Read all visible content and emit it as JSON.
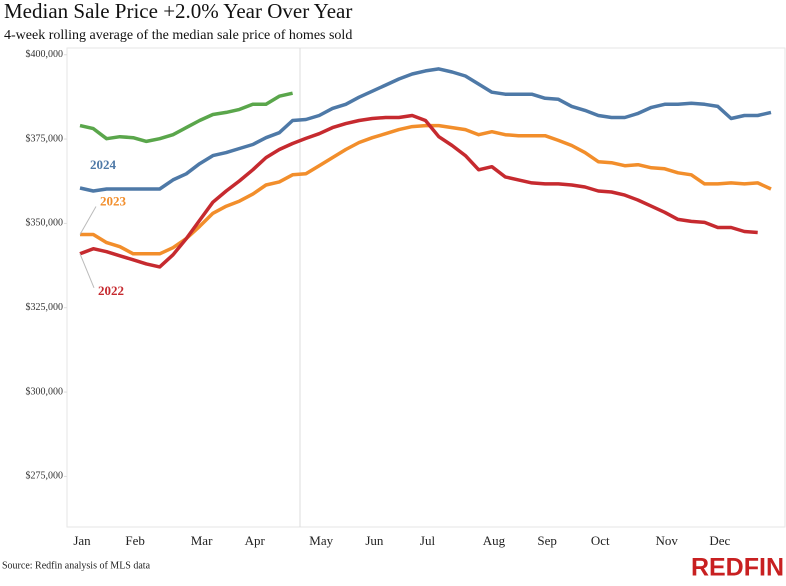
{
  "chart_data": {
    "type": "line",
    "title": "Median Sale Price +2.0% Year Over Year",
    "subtitle": "4-week rolling average of the median sale price of homes sold",
    "source": "Source: Redfin analysis of MLS data",
    "brand": "REDFIN",
    "categories": [
      "Jan",
      null,
      null,
      null,
      "Feb",
      null,
      null,
      null,
      null,
      "Mar",
      null,
      null,
      null,
      "Apr",
      null,
      null,
      null,
      null,
      "May",
      null,
      null,
      null,
      "Jun",
      null,
      null,
      null,
      "Jul",
      null,
      null,
      null,
      null,
      "Aug",
      null,
      null,
      null,
      "Sep",
      null,
      null,
      null,
      "Oct",
      null,
      null,
      null,
      null,
      "Nov",
      null,
      null,
      null,
      "Dec",
      null,
      null,
      null,
      null
    ],
    "series": [
      {
        "color": "#5aa64b",
        "values": [
          379000,
          378100,
          375100,
          375700,
          375400,
          374300,
          375100,
          376300,
          378400,
          380500,
          382300,
          382900,
          383800,
          385300,
          385300,
          387700,
          388600,
          null,
          null,
          null,
          null,
          null,
          null,
          null,
          null,
          null,
          null,
          null,
          null,
          null,
          null,
          null,
          null,
          null,
          null,
          null,
          null,
          null,
          null,
          null,
          null,
          null,
          null,
          null,
          null,
          null,
          null,
          null,
          null,
          null,
          null,
          null,
          null
        ]
      },
      {
        "name": "2024",
        "color": "#4e79a7",
        "values": [
          360500,
          359600,
          360200,
          360200,
          360200,
          360200,
          360200,
          362900,
          364700,
          367700,
          370100,
          371000,
          372200,
          373400,
          375400,
          376900,
          380500,
          380800,
          382000,
          384100,
          385300,
          387400,
          389200,
          391000,
          392800,
          394300,
          395200,
          395800,
          394900,
          393700,
          391300,
          388900,
          388300,
          388300,
          388300,
          387100,
          386800,
          384700,
          383500,
          382000,
          381400,
          381400,
          382600,
          384400,
          385300,
          385300,
          385600,
          385300,
          384700,
          381100,
          382000,
          382000,
          382900
        ]
      },
      {
        "name": "2023",
        "color": "#f28e2b",
        "values": [
          346700,
          346700,
          344300,
          343100,
          341000,
          341000,
          341000,
          342800,
          345500,
          349100,
          353000,
          355100,
          356600,
          358700,
          361400,
          362300,
          364400,
          364700,
          367100,
          369500,
          371900,
          374000,
          375400,
          376600,
          377800,
          378700,
          379000,
          379000,
          378400,
          377800,
          376300,
          377200,
          376300,
          376000,
          376000,
          376000,
          374600,
          373100,
          371000,
          368300,
          368000,
          367100,
          367400,
          366500,
          366200,
          365000,
          364400,
          361700,
          361700,
          362000,
          361700,
          362000,
          360200
        ]
      },
      {
        "name": "2022",
        "color": "#c62a2f",
        "values": [
          341000,
          342500,
          341600,
          340400,
          339200,
          338000,
          337100,
          340700,
          345500,
          350900,
          356300,
          359600,
          362600,
          365900,
          369500,
          371900,
          373700,
          375200,
          376600,
          378400,
          379600,
          380500,
          381100,
          381400,
          381400,
          382000,
          380500,
          375700,
          373100,
          370100,
          365900,
          366800,
          363800,
          362900,
          362000,
          361700,
          361700,
          361400,
          360800,
          359600,
          359300,
          358400,
          356900,
          355100,
          353300,
          351200,
          350600,
          350300,
          348800,
          348800,
          347600,
          347300,
          null
        ]
      }
    ],
    "ylim": [
      260000,
      402000
    ],
    "yticks": [
      {
        "value": 275000,
        "label": "$275,000"
      },
      {
        "value": 300000,
        "label": "$300,000"
      },
      {
        "value": 325000,
        "label": "$325,000"
      },
      {
        "value": 350000,
        "label": "$350,000"
      },
      {
        "value": 375000,
        "label": "$375,000"
      },
      {
        "value": 400000,
        "label": "$400,000"
      }
    ],
    "grid": false
  }
}
